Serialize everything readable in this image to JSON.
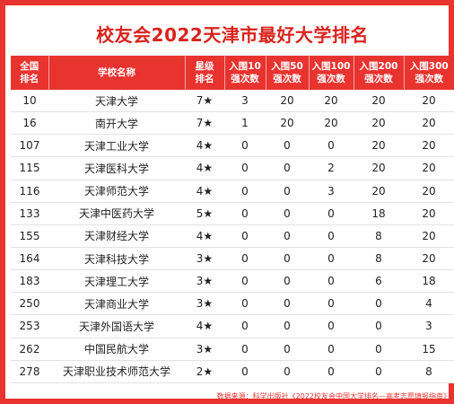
{
  "title": "校友会2022天津市最好大学排名",
  "headers": {
    "rank_line1": "全国",
    "rank_line2": "排名",
    "name": "学校名称",
    "star_line1": "星级",
    "star_line2": "排名",
    "top10_line1": "入围10",
    "top10_line2": "强次数",
    "top50_line1": "入围50",
    "top50_line2": "强次数",
    "top100_line1": "入围100",
    "top100_line2": "强次数",
    "top200_line1": "入围200",
    "top200_line2": "强次数",
    "top300_line1": "入围300",
    "top300_line2": "强次数"
  },
  "rows": [
    {
      "rank": "10",
      "name": "天津大学",
      "stars": "7★",
      "top10": "3",
      "top50": "20",
      "top100": "20",
      "top200": "20",
      "top300": "20"
    },
    {
      "rank": "16",
      "name": "南开大学",
      "stars": "7★",
      "top10": "1",
      "top50": "20",
      "top100": "20",
      "top200": "20",
      "top300": "20"
    },
    {
      "rank": "107",
      "name": "天津工业大学",
      "stars": "4★",
      "top10": "0",
      "top50": "0",
      "top100": "0",
      "top200": "20",
      "top300": "20"
    },
    {
      "rank": "115",
      "name": "天津医科大学",
      "stars": "4★",
      "top10": "0",
      "top50": "0",
      "top100": "2",
      "top200": "20",
      "top300": "20"
    },
    {
      "rank": "116",
      "name": "天津师范大学",
      "stars": "4★",
      "top10": "0",
      "top50": "0",
      "top100": "3",
      "top200": "20",
      "top300": "20"
    },
    {
      "rank": "133",
      "name": "天津中医药大学",
      "stars": "5★",
      "top10": "0",
      "top50": "0",
      "top100": "0",
      "top200": "18",
      "top300": "20"
    },
    {
      "rank": "155",
      "name": "天津财经大学",
      "stars": "4★",
      "top10": "0",
      "top50": "0",
      "top100": "0",
      "top200": "8",
      "top300": "20"
    },
    {
      "rank": "164",
      "name": "天津科技大学",
      "stars": "3★",
      "top10": "0",
      "top50": "0",
      "top100": "0",
      "top200": "8",
      "top300": "20"
    },
    {
      "rank": "183",
      "name": "天津理工大学",
      "stars": "3★",
      "top10": "0",
      "top50": "0",
      "top100": "0",
      "top200": "6",
      "top300": "18"
    },
    {
      "rank": "250",
      "name": "天津商业大学",
      "stars": "3★",
      "top10": "0",
      "top50": "0",
      "top100": "0",
      "top200": "0",
      "top300": "4"
    },
    {
      "rank": "253",
      "name": "天津外国语大学",
      "stars": "4★",
      "top10": "0",
      "top50": "0",
      "top100": "0",
      "top200": "0",
      "top300": "3"
    },
    {
      "rank": "262",
      "name": "中国民航大学",
      "stars": "3★",
      "top10": "0",
      "top50": "0",
      "top100": "0",
      "top200": "0",
      "top300": "15"
    },
    {
      "rank": "278",
      "name": "天津职业技术师范大学",
      "stars": "2★",
      "top10": "0",
      "top50": "0",
      "top100": "0",
      "top200": "0",
      "top300": "8"
    }
  ],
  "footer": "数据来源：科学出版社《2022校友会中国大学排名—高考志愿填报指南》",
  "colors": {
    "accent": "#e8332f",
    "title": "#d9231d"
  }
}
